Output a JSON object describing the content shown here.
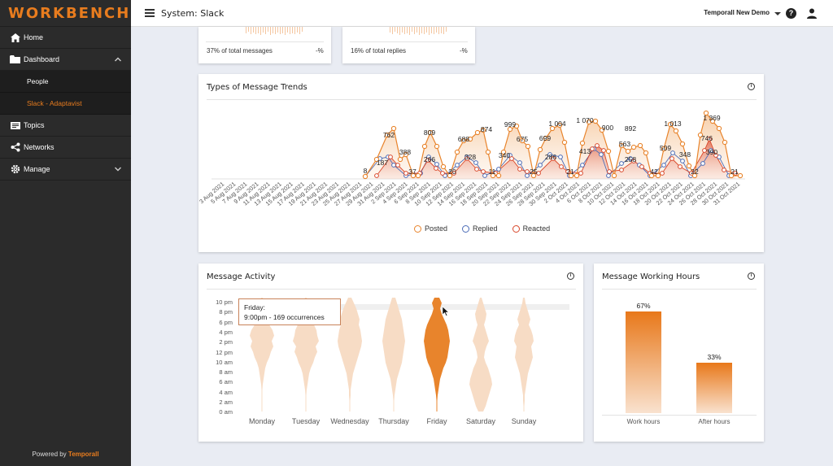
{
  "sidebar": {
    "logo": "WORKBENCH",
    "items": [
      {
        "label": "Home"
      },
      {
        "label": "Dashboard"
      },
      {
        "label": "People"
      },
      {
        "label": "Slack - Adaptavist"
      },
      {
        "label": "Topics"
      },
      {
        "label": "Networks"
      },
      {
        "label": "Manage"
      }
    ],
    "powered_prefix": "Powered by",
    "powered_brand": "Temporall"
  },
  "topbar": {
    "title": "System: Slack",
    "org": "Temporall New Demo",
    "help": "?"
  },
  "stats": [
    {
      "text": "37% of total messages",
      "change": "-%"
    },
    {
      "text": "16% of total replies",
      "change": "-%"
    }
  ],
  "trends": {
    "title": "Types of Message Trends",
    "legend": [
      "Posted",
      "Replied",
      "Reacted"
    ],
    "colors": {
      "posted": "#e8842c",
      "replied": "#4b6cb7",
      "reacted": "#d9482b"
    },
    "data_labels": [
      "8",
      "187",
      "762",
      "388",
      "37",
      "809",
      "266",
      "20",
      "688",
      "328",
      "874",
      "11",
      "340",
      "999",
      "675",
      "25",
      "699",
      "286",
      "1 004",
      "21",
      "1 070",
      "413",
      "900",
      "563",
      "258",
      "892",
      "42",
      "509",
      "1 013",
      "348",
      "22",
      "746",
      "390",
      "1 369",
      "21"
    ],
    "x_labels": [
      "3 Aug 2021",
      "5 Aug 2021",
      "7 Aug 2021",
      "9 Aug 2021",
      "11 Aug 2021",
      "13 Aug 2021",
      "15 Aug 2021",
      "17 Aug 2021",
      "19 Aug 2021",
      "21 Aug 2021",
      "23 Aug 2021",
      "25 Aug 2021",
      "27 Aug 2021",
      "29 Aug 2021",
      "31 Aug 2021",
      "2 Sep 2021",
      "4 Sep 2021",
      "6 Sep 2021",
      "8 Sep 2021",
      "10 Sep 2021",
      "12 Sep 2021",
      "14 Sep 2021",
      "16 Sep 2021",
      "18 Sep 2021",
      "20 Sep 2021",
      "22 Sep 2021",
      "24 Sep 2021",
      "26 Sep 2021",
      "28 Sep 2021",
      "30 Sep 2021",
      "2 Oct 2021",
      "4 Oct 2021",
      "6 Oct 2021",
      "8 Oct 2021",
      "10 Oct 2021",
      "12 Oct 2021",
      "14 Oct 2021",
      "16 Oct 2021",
      "18 Oct 2021",
      "20 Oct 2021",
      "22 Oct 2021",
      "24 Oct 2021",
      "26 Oct 2021",
      "28 Oct 2021",
      "30 Oct 2021",
      "31 Oct 2021"
    ]
  },
  "activity": {
    "title": "Message Activity",
    "hours": [
      "10 pm",
      "8 pm",
      "6 pm",
      "4 pm",
      "2 pm",
      "12 pm",
      "10 am",
      "8 am",
      "6 am",
      "4 am",
      "2 am",
      "0 am"
    ],
    "days": [
      "Monday",
      "Tuesday",
      "Wednesday",
      "Thursday",
      "Friday",
      "Saturday",
      "Sunday"
    ],
    "tooltip_day": "Friday:",
    "tooltip_text": "9:00pm - 169 occurrences",
    "highlight_color": "#e8842c",
    "muted_color": "#f7dcc5"
  },
  "working_hours": {
    "title": "Message Working Hours",
    "bars": [
      {
        "label": "Work hours",
        "value": 67,
        "pct": "67%"
      },
      {
        "label": "After hours",
        "value": 33,
        "pct": "33%"
      }
    ]
  }
}
